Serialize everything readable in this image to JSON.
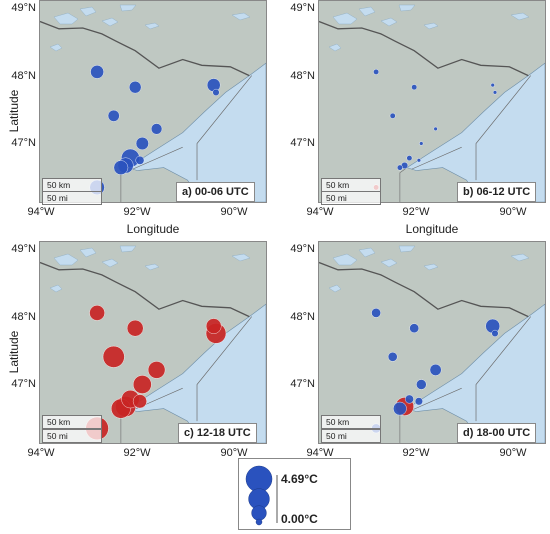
{
  "axes": {
    "xlabel": "Longitude",
    "ylabel": "Latitude",
    "lat_ticks": [
      "49°N",
      "48°N",
      "47°N"
    ],
    "lon_ticks": [
      "94°W",
      "92°W",
      "90°W"
    ]
  },
  "scale_bar": {
    "km": "50 km",
    "mi": "50 mi"
  },
  "colors": {
    "positive": "#c82424",
    "negative": "#2a52be",
    "lake": "#c4dcef",
    "land": "#bfc8c2",
    "border": "#555555"
  },
  "legend": {
    "max_label": "4.69°C",
    "min_label": "0.00°C",
    "color": "#2a52be"
  },
  "map_data": {
    "lat_range": [
      46.25,
      49.0
    ],
    "lon_range": [
      -94.0,
      -89.25
    ],
    "stations": [
      {
        "lon": -92.8,
        "lat": 48.03
      },
      {
        "lon": -92.45,
        "lat": 47.43
      },
      {
        "lon": -92.0,
        "lat": 47.82
      },
      {
        "lon": -91.55,
        "lat": 47.25
      },
      {
        "lon": -91.85,
        "lat": 47.05
      },
      {
        "lon": -92.3,
        "lat": 46.72
      },
      {
        "lon": -92.1,
        "lat": 46.85
      },
      {
        "lon": -92.2,
        "lat": 46.75
      },
      {
        "lon": -92.8,
        "lat": 46.45
      },
      {
        "lon": -91.9,
        "lat": 46.82
      },
      {
        "lon": -90.35,
        "lat": 47.85
      },
      {
        "lon": -90.3,
        "lat": 47.75
      }
    ],
    "panels": [
      {
        "title": "a) 00-06 UTC",
        "sign": "negative",
        "values": [
          1.2,
          0.9,
          1.0,
          0.8,
          1.1,
          1.4,
          2.3,
          1.7,
          1.5,
          0.5,
          1.2,
          0.3
        ]
      },
      {
        "title": "b) 06-12 UTC",
        "sign": "mixed",
        "values": [
          0.2,
          0.2,
          0.2,
          0.1,
          0.1,
          0.2,
          0.2,
          0.3,
          0.2,
          0.1,
          0.1,
          0.1
        ],
        "signs": [
          "negative",
          "negative",
          "negative",
          "negative",
          "negative",
          "negative",
          "negative",
          "negative",
          "positive",
          "negative",
          "negative",
          "negative"
        ]
      },
      {
        "title": "c) 12-18 UTC",
        "sign": "positive",
        "values": [
          1.6,
          3.2,
          1.8,
          2.0,
          2.3,
          2.6,
          2.2,
          2.9,
          3.6,
          1.3,
          1.6,
          2.8
        ]
      },
      {
        "title": "d) 18-00 UTC",
        "sign": "negative",
        "values": [
          0.6,
          0.6,
          0.6,
          0.9,
          0.7,
          1.2,
          0.5,
          2.3,
          0.6,
          0.4,
          1.4,
          0.3
        ],
        "signs": [
          "negative",
          "negative",
          "negative",
          "negative",
          "negative",
          "negative",
          "negative",
          "positive",
          "negative",
          "negative",
          "negative",
          "negative"
        ]
      }
    ],
    "legend_values": [
      4.69,
      3.0,
      1.5,
      0.25
    ]
  }
}
